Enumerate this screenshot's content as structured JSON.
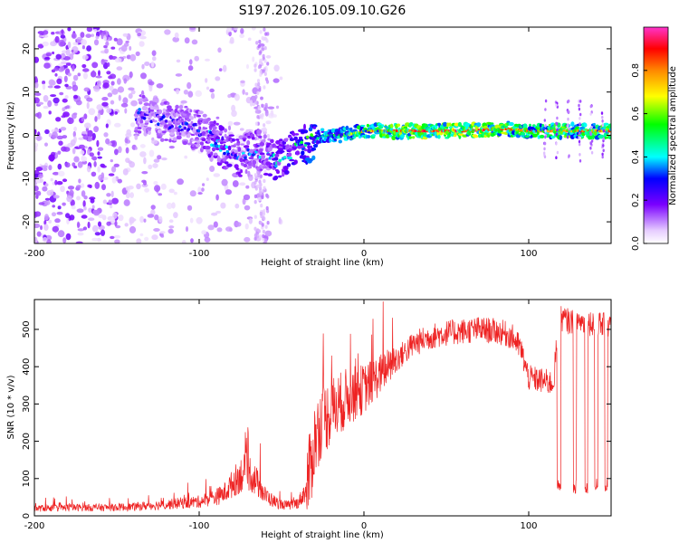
{
  "title": "S197.2026.105.09.10.G26",
  "chart_data": [
    {
      "type": "heatmap",
      "xlabel": "Height of straight line (km)",
      "ylabel": "Frequency (Hz)",
      "xlim": [
        -200,
        150
      ],
      "ylim": [
        -25,
        25
      ],
      "x_ticks": [
        "-200",
        "-100",
        "0",
        "100"
      ],
      "x_tick_values": [
        -200,
        -100,
        0,
        100
      ],
      "y_ticks": [
        "20",
        "10",
        "0",
        "-10",
        "-20"
      ],
      "y_tick_values": [
        20,
        10,
        0,
        -10,
        -20
      ],
      "colorbar": {
        "label": "Normalized spectral amplitude",
        "range": [
          0,
          1
        ],
        "ticks": [
          "0.0",
          "0.2",
          "0.4",
          "0.6",
          "0.8"
        ],
        "tick_values": [
          0.0,
          0.2,
          0.4,
          0.6,
          0.8
        ]
      },
      "ridge": {
        "x": [
          -135,
          -120,
          -105,
          -95,
          -85,
          -75,
          -65,
          -55,
          -45,
          -35,
          -25,
          -15,
          -5,
          0,
          10,
          30,
          60,
          85,
          100,
          120,
          150
        ],
        "frequency": [
          5,
          3,
          2,
          0,
          -3,
          -5,
          -3,
          -6,
          -4,
          -2,
          0,
          0,
          0.5,
          1,
          1,
          1,
          1,
          1.5,
          1,
          1,
          1
        ],
        "amplitude": [
          0.2,
          0.2,
          0.2,
          0.25,
          0.3,
          0.25,
          0.25,
          0.3,
          0.35,
          0.45,
          0.55,
          0.6,
          0.7,
          0.8,
          0.85,
          0.9,
          0.95,
          0.9,
          0.8,
          0.85,
          0.85
        ]
      }
    },
    {
      "type": "line",
      "xlabel": "Height of straight line (km)",
      "ylabel": "SNR (10 * v/v)",
      "xlim": [
        -200,
        150
      ],
      "ylim": [
        0,
        580
      ],
      "x_ticks": [
        "-200",
        "-100",
        "0",
        "100"
      ],
      "x_tick_values": [
        -200,
        -100,
        0,
        100
      ],
      "y_ticks": [
        "0",
        "100",
        "200",
        "300",
        "400",
        "500"
      ],
      "y_tick_values": [
        0,
        100,
        200,
        300,
        400,
        500
      ],
      "series": [
        {
          "name": "SNR",
          "color": "#ee2222",
          "x": [
            -200,
            -180,
            -160,
            -140,
            -130,
            -120,
            -110,
            -100,
            -95,
            -90,
            -85,
            -80,
            -75,
            -70,
            -65,
            -60,
            -55,
            -50,
            -45,
            -40,
            -35,
            -32,
            -30,
            -27,
            -25,
            -22,
            -20,
            -18,
            -15,
            -12,
            -10,
            -5,
            0,
            5,
            10,
            15,
            20,
            25,
            30,
            40,
            50,
            60,
            70,
            80,
            85,
            90,
            95,
            100,
            105,
            110,
            115,
            118,
            120,
            125,
            130,
            135,
            140,
            145,
            150
          ],
          "y": [
            20,
            22,
            22,
            24,
            28,
            30,
            35,
            38,
            45,
            50,
            60,
            85,
            110,
            120,
            90,
            55,
            40,
            30,
            28,
            35,
            70,
            140,
            200,
            240,
            260,
            270,
            280,
            290,
            300,
            310,
            320,
            330,
            340,
            360,
            380,
            400,
            420,
            440,
            460,
            480,
            490,
            495,
            500,
            495,
            490,
            480,
            450,
            370,
            365,
            360,
            355,
            520,
            530,
            520,
            525,
            515,
            520,
            510,
            510
          ]
        }
      ],
      "dropouts": {
        "x": [
          118,
          128,
          135,
          141,
          147
        ],
        "level": 80
      }
    }
  ]
}
